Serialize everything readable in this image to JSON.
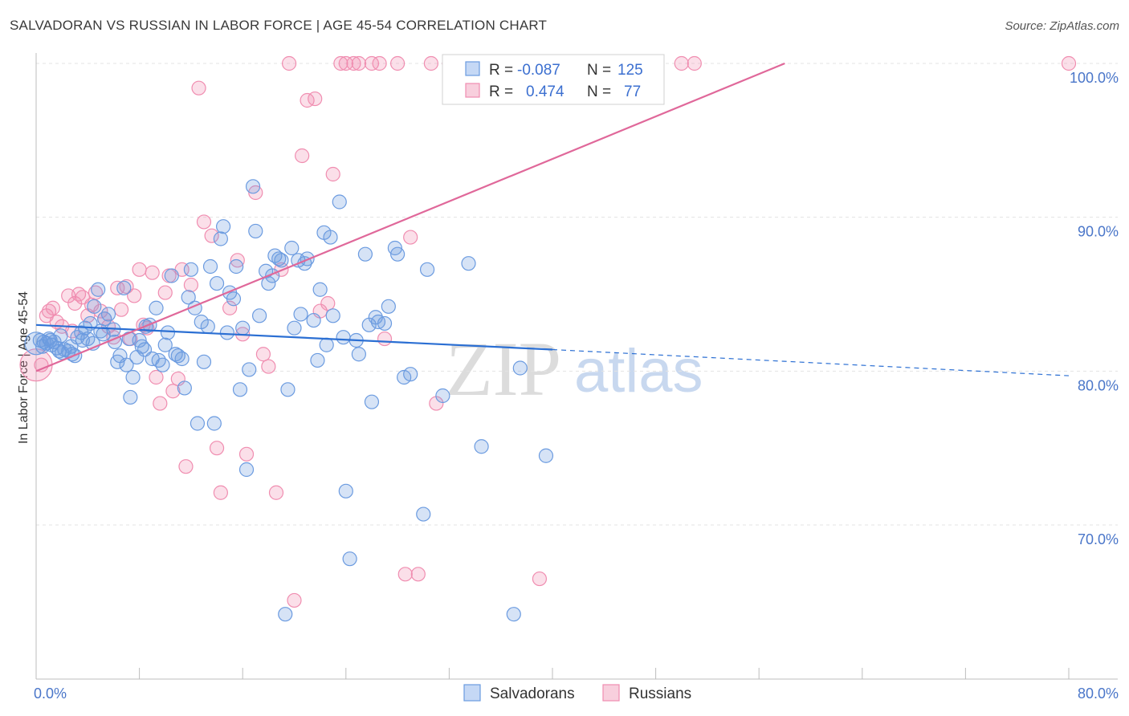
{
  "header": {
    "title": "SALVADORAN VS RUSSIAN IN LABOR FORCE | AGE 45-54 CORRELATION CHART",
    "source": "Source: ZipAtlas.com"
  },
  "watermark": {
    "zip": "ZIP",
    "atlas": "atlas"
  },
  "legend_box": {
    "row1": {
      "r_label": "R =",
      "r_value": "-0.087",
      "n_label": "N =",
      "n_value": "125"
    },
    "row2": {
      "r_label": "R =",
      "r_value": "0.474",
      "n_label": "N =",
      "n_value": "77"
    }
  },
  "chart_data": {
    "type": "scatter",
    "title": "SALVADORAN VS RUSSIAN IN LABOR FORCE | AGE 45-54 CORRELATION CHART",
    "xlabel": "",
    "ylabel": "In Labor Force | Age 45-54",
    "xlim": [
      0,
      80
    ],
    "ylim": [
      60,
      100
    ],
    "x_tick_labels": [
      "0.0%",
      "80.0%"
    ],
    "y_ticks": [
      70,
      80,
      90,
      100
    ],
    "y_tick_labels": [
      "70.0%",
      "80.0%",
      "90.0%",
      "100.0%"
    ],
    "legend": [
      "Salvadorans",
      "Russians"
    ],
    "colors": {
      "salvadorans": "#6b9be0",
      "russians": "#f08db0",
      "blue_line": "#2b6fd3",
      "pink_line": "#e0689a"
    },
    "series": [
      {
        "name": "Salvadorans",
        "r": -0.087,
        "n": 125,
        "trend": {
          "x0": 0,
          "y0": 83.0,
          "x1": 40,
          "y1": 81.4,
          "dash_to_x": 80,
          "dash_to_y": 79.7
        },
        "points": [
          [
            0.3,
            82.0
          ],
          [
            0.5,
            81.6
          ],
          [
            0.8,
            81.8
          ],
          [
            1.0,
            82.1
          ],
          [
            1.2,
            81.7
          ],
          [
            1.4,
            81.9
          ],
          [
            1.6,
            81.5
          ],
          [
            1.8,
            81.3
          ],
          [
            2.0,
            81.2
          ],
          [
            2.2,
            81.4
          ],
          [
            2.5,
            81.3
          ],
          [
            2.8,
            81.1
          ],
          [
            3.0,
            81.0
          ],
          [
            3.2,
            82.2
          ],
          [
            3.5,
            82.5
          ],
          [
            3.8,
            82.8
          ],
          [
            4.0,
            82.1
          ],
          [
            4.2,
            83.1
          ],
          [
            4.5,
            84.2
          ],
          [
            4.8,
            85.3
          ],
          [
            5.0,
            82.6
          ],
          [
            5.3,
            83.4
          ],
          [
            5.6,
            83.7
          ],
          [
            6.0,
            82.7
          ],
          [
            6.3,
            80.6
          ],
          [
            6.5,
            81.0
          ],
          [
            6.8,
            85.4
          ],
          [
            7.0,
            80.4
          ],
          [
            7.3,
            78.3
          ],
          [
            7.5,
            79.6
          ],
          [
            7.8,
            80.9
          ],
          [
            8.0,
            82.0
          ],
          [
            8.2,
            81.6
          ],
          [
            8.5,
            82.9
          ],
          [
            8.8,
            83.0
          ],
          [
            9.0,
            80.8
          ],
          [
            9.3,
            84.1
          ],
          [
            9.5,
            80.7
          ],
          [
            9.8,
            80.4
          ],
          [
            10.0,
            81.7
          ],
          [
            10.2,
            82.5
          ],
          [
            10.5,
            86.2
          ],
          [
            10.8,
            81.1
          ],
          [
            11.0,
            81.0
          ],
          [
            11.3,
            80.8
          ],
          [
            11.5,
            78.9
          ],
          [
            11.8,
            84.8
          ],
          [
            12.0,
            86.6
          ],
          [
            12.3,
            84.1
          ],
          [
            12.5,
            76.6
          ],
          [
            12.8,
            83.2
          ],
          [
            13.0,
            80.6
          ],
          [
            13.3,
            82.9
          ],
          [
            13.5,
            86.8
          ],
          [
            13.8,
            76.6
          ],
          [
            14.0,
            85.7
          ],
          [
            14.3,
            88.6
          ],
          [
            14.5,
            89.4
          ],
          [
            14.8,
            82.5
          ],
          [
            15.0,
            85.1
          ],
          [
            15.3,
            84.7
          ],
          [
            15.5,
            86.8
          ],
          [
            15.8,
            78.8
          ],
          [
            16.0,
            82.8
          ],
          [
            16.3,
            73.6
          ],
          [
            16.5,
            80.1
          ],
          [
            16.8,
            92.0
          ],
          [
            17.0,
            89.1
          ],
          [
            17.3,
            83.6
          ],
          [
            17.8,
            86.5
          ],
          [
            18.0,
            85.7
          ],
          [
            18.3,
            86.2
          ],
          [
            18.5,
            87.5
          ],
          [
            18.8,
            87.3
          ],
          [
            19.0,
            87.2
          ],
          [
            19.3,
            64.2
          ],
          [
            19.5,
            78.8
          ],
          [
            19.8,
            88.0
          ],
          [
            20.0,
            82.8
          ],
          [
            20.3,
            87.2
          ],
          [
            20.5,
            83.7
          ],
          [
            20.8,
            87.0
          ],
          [
            21.0,
            87.3
          ],
          [
            21.5,
            83.3
          ],
          [
            21.8,
            80.7
          ],
          [
            22.0,
            85.3
          ],
          [
            22.3,
            89.0
          ],
          [
            22.5,
            81.7
          ],
          [
            22.8,
            88.7
          ],
          [
            23.0,
            83.6
          ],
          [
            23.5,
            91.0
          ],
          [
            23.8,
            82.2
          ],
          [
            24.0,
            72.2
          ],
          [
            24.3,
            67.8
          ],
          [
            24.8,
            82.0
          ],
          [
            25.0,
            81.1
          ],
          [
            25.5,
            87.6
          ],
          [
            25.8,
            83.0
          ],
          [
            26.0,
            78.0
          ],
          [
            26.3,
            83.5
          ],
          [
            26.5,
            83.2
          ],
          [
            27.0,
            83.1
          ],
          [
            27.3,
            84.2
          ],
          [
            27.8,
            88.0
          ],
          [
            28.0,
            87.6
          ],
          [
            28.5,
            79.6
          ],
          [
            29.0,
            79.8
          ],
          [
            30.0,
            70.7
          ],
          [
            30.3,
            86.6
          ],
          [
            31.5,
            78.4
          ],
          [
            33.5,
            87.0
          ],
          [
            34.5,
            75.1
          ],
          [
            37.0,
            64.2
          ],
          [
            37.5,
            80.2
          ],
          [
            39.5,
            74.5
          ],
          [
            0.6,
            81.9
          ],
          [
            1.1,
            82.0
          ],
          [
            1.9,
            82.3
          ],
          [
            2.7,
            81.6
          ],
          [
            3.6,
            82.0
          ],
          [
            4.4,
            81.8
          ],
          [
            5.2,
            82.4
          ],
          [
            6.1,
            81.9
          ],
          [
            7.2,
            82.1
          ],
          [
            8.4,
            81.4
          ]
        ]
      },
      {
        "name": "Russians",
        "r": 0.474,
        "n": 77,
        "trend": {
          "x0": 0,
          "y0": 80.0,
          "x1": 58,
          "y1": 100.0
        },
        "points": [
          [
            0.4,
            80.4
          ],
          [
            0.8,
            83.6
          ],
          [
            1.0,
            83.9
          ],
          [
            1.3,
            84.1
          ],
          [
            1.6,
            83.2
          ],
          [
            2.0,
            82.9
          ],
          [
            2.5,
            84.9
          ],
          [
            2.8,
            82.6
          ],
          [
            3.0,
            84.4
          ],
          [
            3.3,
            85.0
          ],
          [
            3.6,
            84.8
          ],
          [
            4.0,
            83.6
          ],
          [
            4.3,
            84.3
          ],
          [
            4.6,
            85.1
          ],
          [
            5.0,
            83.9
          ],
          [
            5.3,
            83.4
          ],
          [
            5.6,
            82.9
          ],
          [
            6.0,
            82.2
          ],
          [
            6.3,
            85.4
          ],
          [
            6.6,
            84.0
          ],
          [
            7.0,
            85.5
          ],
          [
            7.3,
            82.1
          ],
          [
            7.6,
            84.9
          ],
          [
            8.0,
            86.6
          ],
          [
            8.3,
            83.0
          ],
          [
            8.6,
            82.8
          ],
          [
            9.0,
            86.4
          ],
          [
            9.3,
            79.6
          ],
          [
            9.6,
            77.9
          ],
          [
            10.0,
            85.1
          ],
          [
            10.3,
            86.2
          ],
          [
            10.6,
            78.7
          ],
          [
            11.0,
            79.5
          ],
          [
            11.3,
            86.6
          ],
          [
            11.6,
            73.8
          ],
          [
            12.0,
            85.6
          ],
          [
            12.6,
            98.4
          ],
          [
            13.0,
            89.7
          ],
          [
            13.6,
            88.8
          ],
          [
            14.0,
            75.0
          ],
          [
            14.3,
            72.1
          ],
          [
            15.0,
            84.1
          ],
          [
            15.6,
            87.2
          ],
          [
            16.0,
            82.4
          ],
          [
            16.3,
            74.6
          ],
          [
            17.0,
            91.6
          ],
          [
            17.6,
            81.1
          ],
          [
            18.0,
            80.3
          ],
          [
            18.6,
            72.1
          ],
          [
            19.0,
            86.6
          ],
          [
            19.6,
            100.0
          ],
          [
            20.0,
            65.1
          ],
          [
            20.6,
            94.0
          ],
          [
            21.0,
            97.6
          ],
          [
            21.6,
            97.7
          ],
          [
            22.0,
            83.9
          ],
          [
            22.6,
            84.4
          ],
          [
            23.0,
            92.8
          ],
          [
            23.6,
            100.0
          ],
          [
            24.0,
            100.0
          ],
          [
            24.6,
            100.0
          ],
          [
            25.0,
            100.0
          ],
          [
            26.0,
            100.0
          ],
          [
            26.6,
            100.0
          ],
          [
            27.0,
            82.1
          ],
          [
            28.0,
            100.0
          ],
          [
            28.6,
            66.8
          ],
          [
            29.0,
            88.7
          ],
          [
            29.6,
            66.8
          ],
          [
            30.6,
            100.0
          ],
          [
            31.0,
            77.9
          ],
          [
            32.0,
            100.0
          ],
          [
            36.0,
            100.0
          ],
          [
            39.0,
            66.5
          ],
          [
            50.0,
            100.0
          ],
          [
            51.0,
            100.0
          ],
          [
            80.0,
            100.0
          ]
        ]
      }
    ]
  }
}
